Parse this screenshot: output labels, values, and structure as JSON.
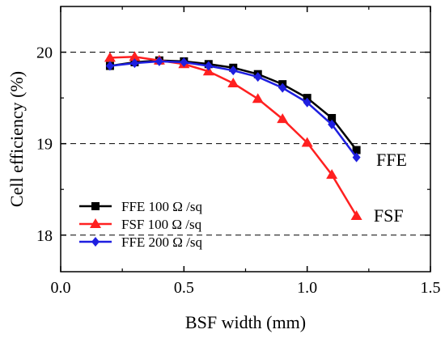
{
  "chart_data": {
    "type": "line",
    "xlabel": "BSF width (mm)",
    "ylabel": "Cell efficiency (%)",
    "xlim": [
      0.0,
      1.5
    ],
    "ylim": [
      17.6,
      20.5
    ],
    "x_ticks": [
      "0.0",
      "0.5",
      "1.0",
      "1.5"
    ],
    "y_ticks": [
      "18",
      "19",
      "20"
    ],
    "grid": "dashed horizontal at 18, 19, 20",
    "legend_position": "bottom-left",
    "x": [
      0.2,
      0.3,
      0.4,
      0.5,
      0.6,
      0.7,
      0.8,
      0.9,
      1.0,
      1.1,
      1.2
    ],
    "series": [
      {
        "name": "FFE 100 Ω /sq",
        "color": "#000000",
        "marker": "square",
        "values": [
          19.85,
          19.89,
          19.91,
          19.9,
          19.87,
          19.83,
          19.76,
          19.65,
          19.5,
          19.28,
          18.93
        ]
      },
      {
        "name": "FSF 100 Ω /sq",
        "color": "#ff2020",
        "marker": "triangle",
        "values": [
          19.94,
          19.95,
          19.91,
          19.87,
          19.79,
          19.66,
          19.49,
          19.27,
          19.01,
          18.66,
          18.21
        ]
      },
      {
        "name": "FFE 200 Ω /sq",
        "color": "#1f1fe0",
        "marker": "diamond",
        "values": [
          19.85,
          19.88,
          19.9,
          19.89,
          19.85,
          19.8,
          19.73,
          19.61,
          19.45,
          19.21,
          18.85
        ]
      }
    ],
    "annotations": [
      {
        "text": "FFE",
        "x": 1.28,
        "y": 18.83
      },
      {
        "text": "FSF",
        "x": 1.27,
        "y": 18.22
      }
    ]
  }
}
